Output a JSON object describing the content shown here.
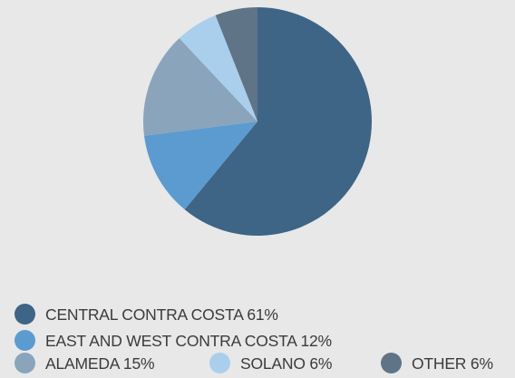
{
  "chart_data": {
    "type": "pie",
    "slices": [
      {
        "label": "CENTRAL CONTRA COSTA",
        "value": 61,
        "display": "CENTRAL CONTRA COSTA 61%",
        "color": "#3e6486"
      },
      {
        "label": "EAST AND WEST CONTRA COSTA",
        "value": 12,
        "display": "EAST AND WEST CONTRA COSTA 12%",
        "color": "#5b9bd0"
      },
      {
        "label": "ALAMEDA",
        "value": 15,
        "display": "ALAMEDA 15%",
        "color": "#8aa4bc"
      },
      {
        "label": "SOLANO",
        "value": 6,
        "display": "SOLANO 6%",
        "color": "#aacfec"
      },
      {
        "label": "OTHER",
        "value": 6,
        "display": "OTHER 6%",
        "color": "#607488"
      }
    ],
    "start_angle_deg": 0,
    "direction": "clockwise",
    "legend_position": "bottom"
  }
}
